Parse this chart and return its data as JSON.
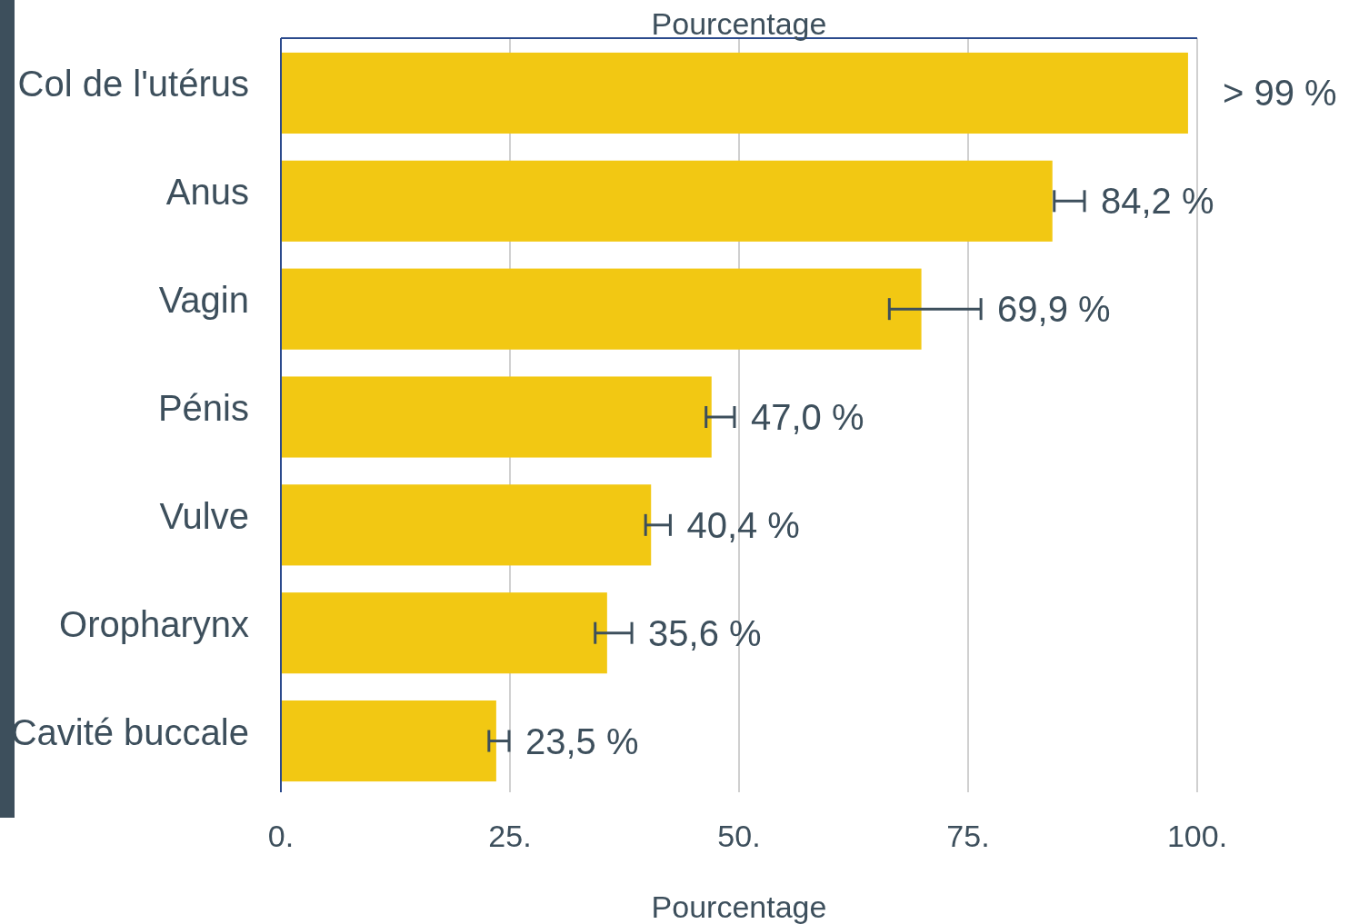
{
  "chart_data": {
    "type": "bar",
    "orientation": "horizontal",
    "xlabel": "Pourcentage",
    "x2label": "Pourcentage",
    "categories": [
      "Col de l'utérus",
      "Anus",
      "Vagin",
      "Pénis",
      "Vulve",
      "Oropharynx",
      "Cavité buccale"
    ],
    "values": [
      99.0,
      84.2,
      69.9,
      47.0,
      40.4,
      35.6,
      23.5
    ],
    "errors": [
      null,
      [
        84.4,
        87.7
      ],
      [
        66.4,
        76.4
      ],
      [
        46.4,
        49.5
      ],
      [
        39.8,
        42.5
      ],
      [
        34.3,
        38.3
      ],
      [
        22.7,
        24.9
      ]
    ],
    "value_labels": [
      "> 99 %",
      "84,2 %",
      "69,9 %",
      "47,0 %",
      "40,4 %",
      "35,6 %",
      "23,5 %"
    ],
    "color": "#f2c813",
    "xlim": [
      0,
      100
    ],
    "xticks": [
      {
        "value": 0,
        "label": "0."
      },
      {
        "value": 25,
        "label": "25."
      },
      {
        "value": 50,
        "label": "50."
      },
      {
        "value": 75,
        "label": "75."
      },
      {
        "value": 100,
        "label": "100."
      }
    ],
    "grid": "x"
  }
}
